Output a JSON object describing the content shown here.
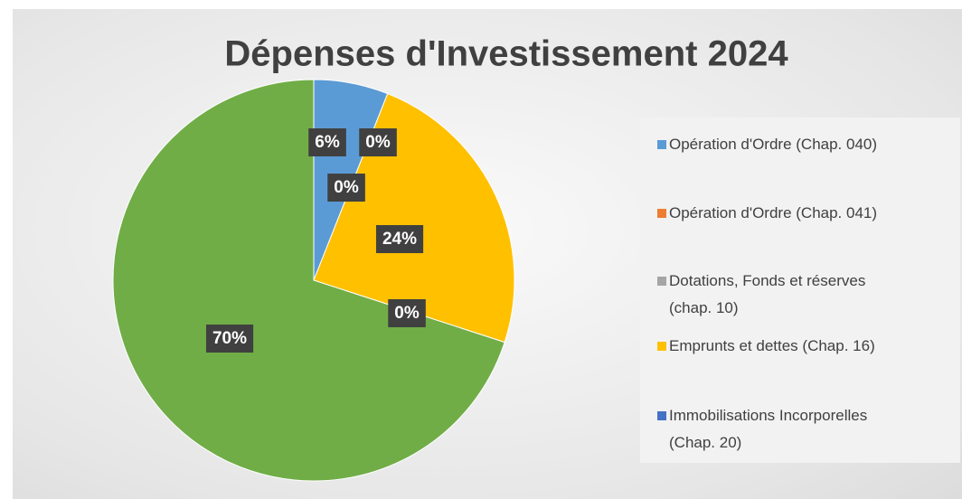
{
  "chart_data": {
    "type": "pie",
    "title": "Dépenses d'Investissement 2024",
    "categories": [
      "Opération d'Ordre (Chap. 040)",
      "Opération d'Ordre (Chap. 041)",
      "Dotations, Fonds et réserves (chap. 10)",
      "Emprunts et dettes (Chap. 16)",
      "Immobilisations Incorporelles (Chap. 20)",
      null
    ],
    "values": [
      6,
      0,
      0,
      24,
      0,
      70
    ],
    "value_labels": [
      "6%",
      "0%",
      "0%",
      "24%",
      "0%",
      "70%"
    ],
    "colors": [
      "#5b9bd5",
      "#ed7d31",
      "#a5a5a5",
      "#ffc000",
      "#4472c4",
      "#70ad47"
    ],
    "legend": "right"
  }
}
